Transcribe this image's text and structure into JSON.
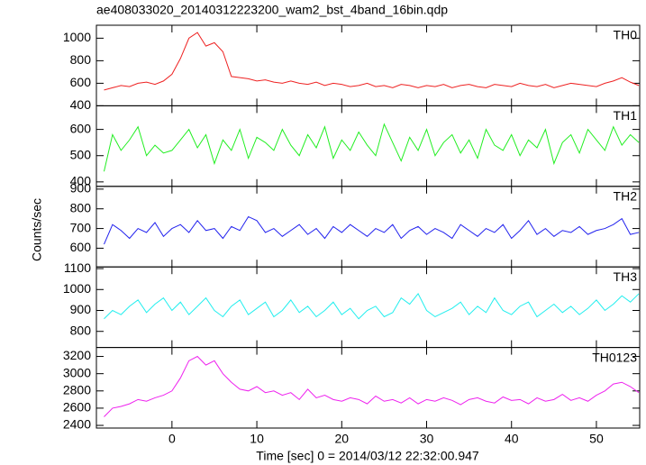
{
  "title": "ae408033020_20140312223200_wam2_bst_4band_16bin.qdp",
  "ylabel": "Counts/sec",
  "xlabel": "Time [sec] 0 = 2014/03/12 22:32:00.947",
  "chart_data": [
    {
      "type": "line",
      "name": "TH0",
      "color": "#ee2222",
      "x": [
        -8,
        -7,
        -6,
        -5,
        -4,
        -3,
        -2,
        -1,
        0,
        1,
        2,
        3,
        4,
        5,
        6,
        7,
        8,
        9,
        10,
        11,
        12,
        13,
        14,
        15,
        16,
        17,
        18,
        19,
        20,
        21,
        22,
        23,
        24,
        25,
        26,
        27,
        28,
        29,
        30,
        31,
        32,
        33,
        34,
        35,
        36,
        37,
        38,
        39,
        40,
        41,
        42,
        43,
        44,
        45,
        46,
        47,
        48,
        49,
        50,
        51,
        52,
        53,
        54,
        55
      ],
      "values": [
        540,
        560,
        580,
        570,
        600,
        610,
        590,
        620,
        680,
        820,
        1000,
        1050,
        930,
        960,
        880,
        660,
        650,
        640,
        620,
        630,
        610,
        600,
        620,
        600,
        590,
        610,
        580,
        600,
        590,
        570,
        580,
        600,
        570,
        580,
        560,
        590,
        580,
        560,
        580,
        570,
        590,
        560,
        580,
        590,
        570,
        560,
        590,
        580,
        570,
        600,
        580,
        570,
        590,
        560,
        580,
        600,
        590,
        580,
        570,
        600,
        620,
        650,
        610,
        580
      ],
      "xlim": [
        -8.9,
        55.1
      ],
      "ylim": [
        400,
        1115
      ],
      "yticks": [
        400,
        600,
        800,
        1000
      ]
    },
    {
      "type": "line",
      "name": "TH1",
      "color": "#22ee22",
      "x": [
        -8,
        -7,
        -6,
        -5,
        -4,
        -3,
        -2,
        -1,
        0,
        1,
        2,
        3,
        4,
        5,
        6,
        7,
        8,
        9,
        10,
        11,
        12,
        13,
        14,
        15,
        16,
        17,
        18,
        19,
        20,
        21,
        22,
        23,
        24,
        25,
        26,
        27,
        28,
        29,
        30,
        31,
        32,
        33,
        34,
        35,
        36,
        37,
        38,
        39,
        40,
        41,
        42,
        43,
        44,
        45,
        46,
        47,
        48,
        49,
        50,
        51,
        52,
        53,
        54,
        55
      ],
      "values": [
        440,
        580,
        520,
        560,
        610,
        500,
        540,
        510,
        520,
        560,
        600,
        530,
        580,
        470,
        560,
        520,
        600,
        490,
        570,
        550,
        520,
        600,
        540,
        500,
        580,
        530,
        610,
        490,
        560,
        520,
        590,
        540,
        500,
        620,
        550,
        480,
        570,
        520,
        600,
        500,
        550,
        580,
        510,
        560,
        490,
        600,
        540,
        520,
        580,
        500,
        560,
        530,
        600,
        470,
        550,
        580,
        510,
        600,
        560,
        520,
        610,
        540,
        580,
        550
      ],
      "xlim": [
        -8.9,
        55.1
      ],
      "ylim": [
        383,
        690
      ],
      "yticks": [
        400,
        500,
        600
      ]
    },
    {
      "type": "line",
      "name": "TH2",
      "color": "#2222ee",
      "x": [
        -8,
        -7,
        -6,
        -5,
        -4,
        -3,
        -2,
        -1,
        0,
        1,
        2,
        3,
        4,
        5,
        6,
        7,
        8,
        9,
        10,
        11,
        12,
        13,
        14,
        15,
        16,
        17,
        18,
        19,
        20,
        21,
        22,
        23,
        24,
        25,
        26,
        27,
        28,
        29,
        30,
        31,
        32,
        33,
        34,
        35,
        36,
        37,
        38,
        39,
        40,
        41,
        42,
        43,
        44,
        45,
        46,
        47,
        48,
        49,
        50,
        51,
        52,
        53,
        54,
        55
      ],
      "values": [
        620,
        720,
        690,
        650,
        700,
        680,
        730,
        660,
        700,
        720,
        680,
        740,
        690,
        700,
        650,
        710,
        690,
        760,
        740,
        680,
        700,
        660,
        690,
        720,
        670,
        700,
        650,
        710,
        680,
        720,
        690,
        660,
        700,
        680,
        720,
        650,
        690,
        710,
        670,
        700,
        680,
        650,
        720,
        690,
        660,
        700,
        680,
        720,
        650,
        690,
        740,
        670,
        700,
        660,
        690,
        680,
        710,
        670,
        690,
        700,
        720,
        750,
        670,
        680
      ],
      "xlim": [
        -8.9,
        55.1
      ],
      "ylim": [
        505,
        914
      ],
      "yticks": [
        600,
        700,
        800,
        900
      ]
    },
    {
      "type": "line",
      "name": "TH3",
      "color": "#22eeee",
      "x": [
        -8,
        -7,
        -6,
        -5,
        -4,
        -3,
        -2,
        -1,
        0,
        1,
        2,
        3,
        4,
        5,
        6,
        7,
        8,
        9,
        10,
        11,
        12,
        13,
        14,
        15,
        16,
        17,
        18,
        19,
        20,
        21,
        22,
        23,
        24,
        25,
        26,
        27,
        28,
        29,
        30,
        31,
        32,
        33,
        34,
        35,
        36,
        37,
        38,
        39,
        40,
        41,
        42,
        43,
        44,
        45,
        46,
        47,
        48,
        49,
        50,
        51,
        52,
        53,
        54,
        55
      ],
      "values": [
        860,
        900,
        880,
        920,
        950,
        890,
        930,
        960,
        900,
        940,
        880,
        920,
        960,
        900,
        870,
        920,
        950,
        880,
        910,
        940,
        870,
        900,
        950,
        890,
        920,
        870,
        900,
        940,
        880,
        910,
        860,
        900,
        920,
        870,
        890,
        960,
        930,
        980,
        900,
        870,
        890,
        910,
        940,
        880,
        920,
        890,
        960,
        900,
        880,
        920,
        940,
        870,
        900,
        930,
        890,
        920,
        880,
        910,
        950,
        900,
        930,
        970,
        940,
        980
      ],
      "xlim": [
        -8.9,
        55.1
      ],
      "ylim": [
        723,
        1108
      ],
      "yticks": [
        800,
        900,
        1000,
        1100
      ]
    },
    {
      "type": "line",
      "name": "TH0123",
      "color": "#ee22ee",
      "x": [
        -8,
        -7,
        -6,
        -5,
        -4,
        -3,
        -2,
        -1,
        0,
        1,
        2,
        3,
        4,
        5,
        6,
        7,
        8,
        9,
        10,
        11,
        12,
        13,
        14,
        15,
        16,
        17,
        18,
        19,
        20,
        21,
        22,
        23,
        24,
        25,
        26,
        27,
        28,
        29,
        30,
        31,
        32,
        33,
        34,
        35,
        36,
        37,
        38,
        39,
        40,
        41,
        42,
        43,
        44,
        45,
        46,
        47,
        48,
        49,
        50,
        51,
        52,
        53,
        54,
        55
      ],
      "values": [
        2500,
        2600,
        2620,
        2650,
        2700,
        2680,
        2720,
        2750,
        2800,
        2950,
        3150,
        3200,
        3100,
        3150,
        3000,
        2900,
        2820,
        2800,
        2850,
        2780,
        2800,
        2750,
        2780,
        2700,
        2820,
        2720,
        2750,
        2700,
        2680,
        2720,
        2700,
        2650,
        2740,
        2680,
        2700,
        2660,
        2720,
        2650,
        2700,
        2680,
        2720,
        2690,
        2640,
        2700,
        2720,
        2680,
        2660,
        2730,
        2690,
        2700,
        2650,
        2720,
        2680,
        2700,
        2760,
        2690,
        2720,
        2680,
        2750,
        2800,
        2880,
        2900,
        2850,
        2780
      ],
      "xlim": [
        -8.9,
        55.1
      ],
      "ylim": [
        2369,
        3304
      ],
      "yticks": [
        2400,
        2600,
        2800,
        3000,
        3200
      ],
      "xticks": [
        0,
        10,
        20,
        30,
        40,
        50
      ]
    }
  ]
}
